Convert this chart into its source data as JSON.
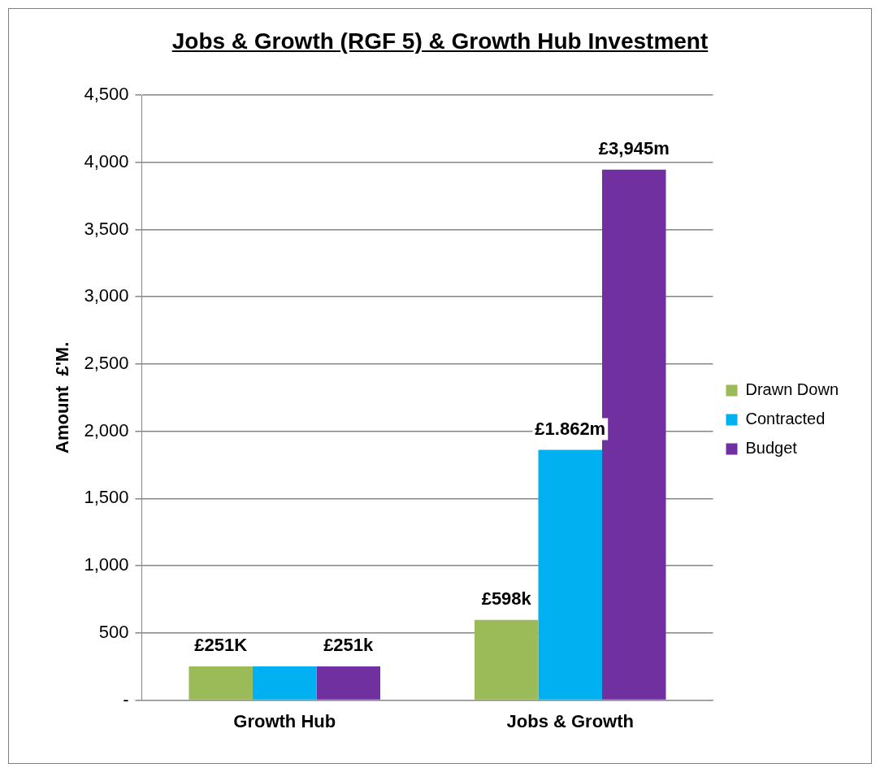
{
  "chart_data": {
    "type": "bar",
    "title": "Jobs & Growth (RGF 5) & Growth Hub Investment",
    "ylabel": "Amount  £'M.",
    "categories": [
      "Growth Hub",
      "Jobs & Growth"
    ],
    "series": [
      {
        "name": "Drawn Down",
        "color": "#9bbb59",
        "values": [
          251,
          598
        ],
        "value_labels": [
          "£251K",
          "£598k"
        ]
      },
      {
        "name": "Contracted",
        "color": "#00b0f0",
        "values": [
          251,
          1862
        ],
        "value_labels": [
          null,
          null
        ]
      },
      {
        "name": "Budget",
        "color": "#7030a0",
        "values": [
          251,
          3945
        ],
        "value_labels": [
          "£251k",
          "£3,945m"
        ]
      }
    ],
    "ylim": [
      0,
      4500
    ],
    "yticks": [
      {
        "value": 0,
        "label": "-"
      },
      500,
      {
        "value": 1000,
        "label": "1,000"
      },
      {
        "value": 1500,
        "label": "1,500"
      },
      {
        "value": 2000,
        "label": "2,000"
      },
      {
        "value": 2500,
        "label": "2,500"
      },
      {
        "value": 3000,
        "label": "3,000"
      },
      {
        "value": 3500,
        "label": "3,500"
      },
      {
        "value": 4000,
        "label": "4,000"
      },
      {
        "value": 4500,
        "label": "4,500"
      }
    ],
    "annotations": [
      {
        "text": "£1.862m",
        "x": "Jobs & Growth",
        "y": 1862
      }
    ],
    "grid": "y",
    "legend": "right"
  }
}
